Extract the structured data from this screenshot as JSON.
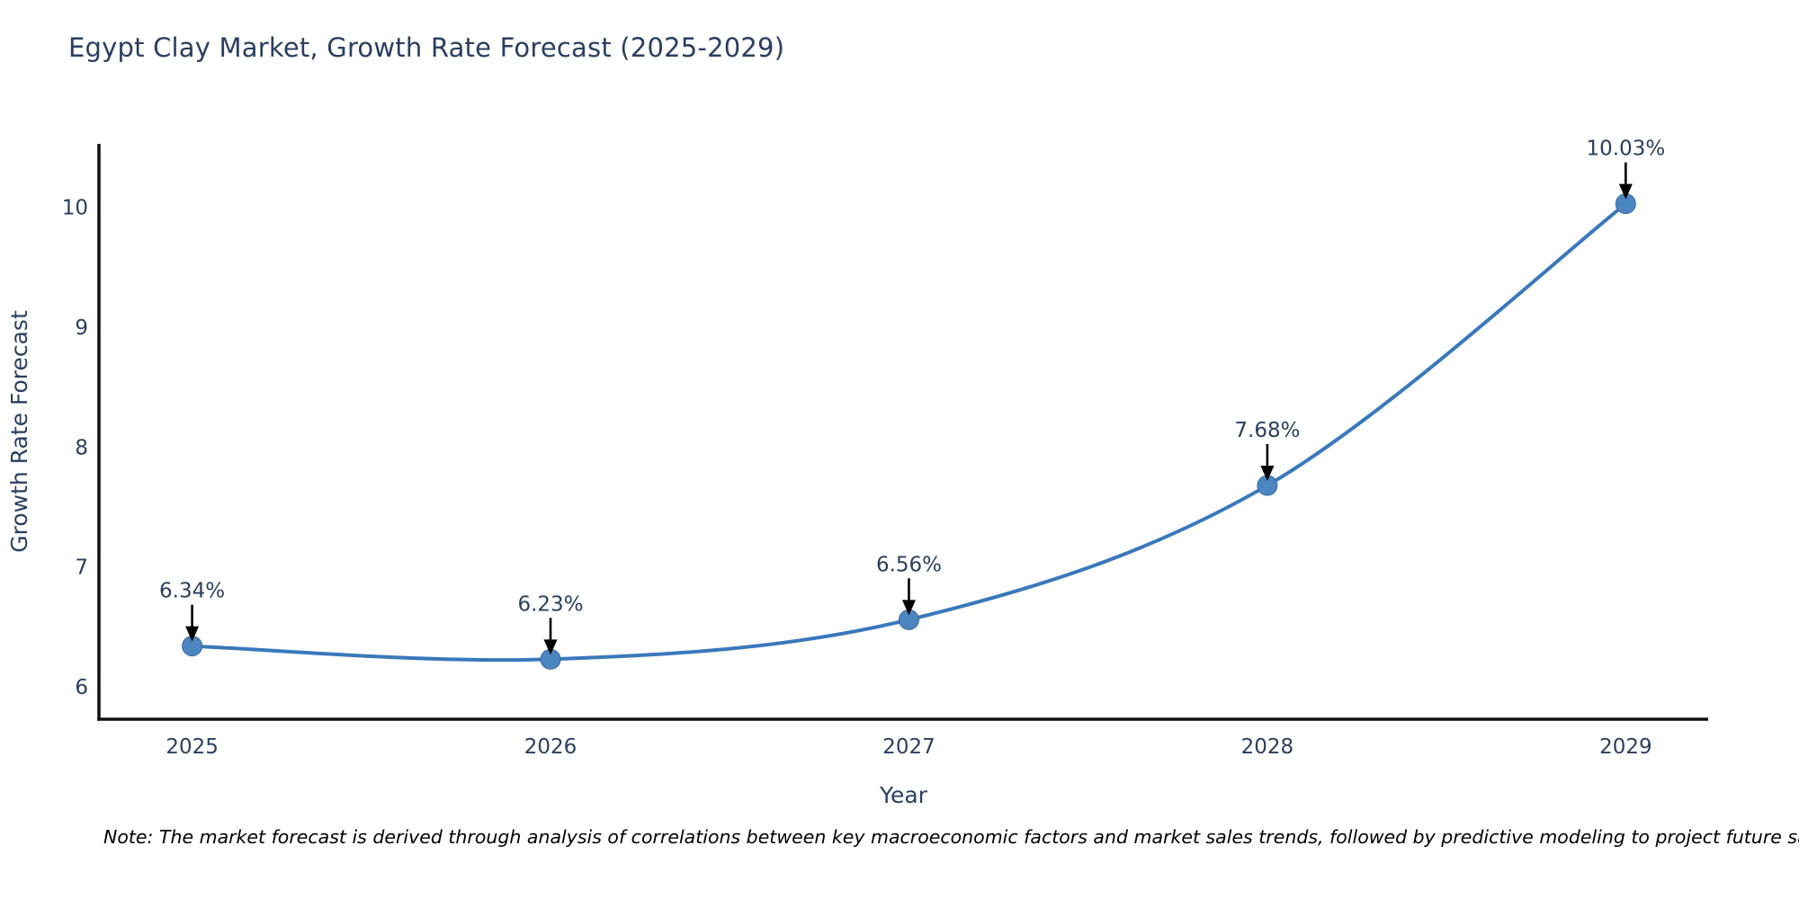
{
  "page": {
    "note": "Note: The market forecast is derived through analysis of correlations between key macroeconomic factors and market sales trends, followed by predictive modeling to project future sales"
  },
  "chart_data": {
    "type": "line",
    "title": "Egypt Clay Market, Growth Rate Forecast (2025-2029)",
    "xlabel": "Year",
    "ylabel": "Growth Rate Forecast",
    "x": [
      2025,
      2026,
      2027,
      2028,
      2029
    ],
    "series": [
      {
        "name": "Growth Rate Forecast",
        "values": [
          6.34,
          6.23,
          6.56,
          7.68,
          10.03
        ],
        "point_labels": [
          "6.34%",
          "6.23%",
          "6.56%",
          "7.68%",
          "10.03%"
        ]
      }
    ],
    "xticks": [
      "2025",
      "2026",
      "2027",
      "2028",
      "2029"
    ],
    "yticks": [
      6,
      7,
      8,
      9,
      10
    ],
    "xlim": [
      2024.74,
      2029.23
    ],
    "ylim": [
      5.73,
      10.53
    ],
    "grid": false,
    "legend_position": "none",
    "line_shape": "spline",
    "annotations": "black arrows pointing down from each percentage label to its data point",
    "colors": {
      "line": "#3a78bc",
      "marker": "#4b86c0",
      "marker_edge": "#38699c",
      "arrow": "#000000",
      "axis": "#111111",
      "text": "#2a3f5f",
      "note": "#000000",
      "background": "#ffffff"
    }
  }
}
